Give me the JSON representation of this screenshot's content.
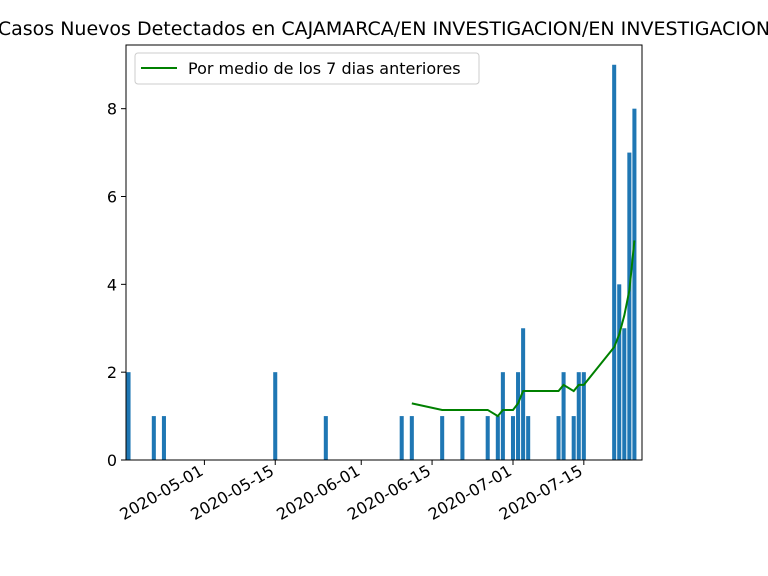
{
  "chart_data": {
    "type": "bar",
    "title": "Casos Nuevos Detectados en CAJAMARCA/EN INVESTIGACION/EN INVESTIGACION",
    "xlabel": "",
    "ylabel": "",
    "x_range": [
      "2020-04-16",
      "2020-07-26"
    ],
    "ylim": [
      0,
      9.45
    ],
    "grid": false,
    "legend_placement": "upper-left",
    "x_tick_labels": [
      "2020-05-01",
      "2020-05-15",
      "2020-06-01",
      "2020-06-15",
      "2020-07-01",
      "2020-07-15"
    ],
    "y_tick_labels": [
      "0",
      "2",
      "4",
      "6",
      "8"
    ],
    "y_tick_values": [
      0,
      2,
      4,
      6,
      8
    ],
    "bar_color": "#1f77b4",
    "line_color": "#008000",
    "bars": [
      {
        "date": "2020-04-16",
        "value": 2
      },
      {
        "date": "2020-04-21",
        "value": 1
      },
      {
        "date": "2020-04-23",
        "value": 1
      },
      {
        "date": "2020-05-15",
        "value": 2
      },
      {
        "date": "2020-05-25",
        "value": 1
      },
      {
        "date": "2020-06-09",
        "value": 1
      },
      {
        "date": "2020-06-11",
        "value": 1
      },
      {
        "date": "2020-06-17",
        "value": 1
      },
      {
        "date": "2020-06-21",
        "value": 1
      },
      {
        "date": "2020-06-26",
        "value": 1
      },
      {
        "date": "2020-06-28",
        "value": 1
      },
      {
        "date": "2020-06-29",
        "value": 2
      },
      {
        "date": "2020-07-01",
        "value": 1
      },
      {
        "date": "2020-07-02",
        "value": 2
      },
      {
        "date": "2020-07-03",
        "value": 3
      },
      {
        "date": "2020-07-04",
        "value": 1
      },
      {
        "date": "2020-07-10",
        "value": 1
      },
      {
        "date": "2020-07-11",
        "value": 2
      },
      {
        "date": "2020-07-13",
        "value": 1
      },
      {
        "date": "2020-07-14",
        "value": 2
      },
      {
        "date": "2020-07-15",
        "value": 2
      },
      {
        "date": "2020-07-21",
        "value": 9
      },
      {
        "date": "2020-07-22",
        "value": 4
      },
      {
        "date": "2020-07-23",
        "value": 3
      },
      {
        "date": "2020-07-24",
        "value": 7
      },
      {
        "date": "2020-07-25",
        "value": 8
      }
    ],
    "series": [
      {
        "name": "Por medio de los 7 dias anteriores",
        "points": [
          {
            "date": "2020-06-11",
            "value": 1.29
          },
          {
            "date": "2020-06-17",
            "value": 1.14
          },
          {
            "date": "2020-06-26",
            "value": 1.14
          },
          {
            "date": "2020-06-28",
            "value": 1.0
          },
          {
            "date": "2020-06-29",
            "value": 1.14
          },
          {
            "date": "2020-07-01",
            "value": 1.14
          },
          {
            "date": "2020-07-02",
            "value": 1.29
          },
          {
            "date": "2020-07-03",
            "value": 1.57
          },
          {
            "date": "2020-07-04",
            "value": 1.57
          },
          {
            "date": "2020-07-10",
            "value": 1.57
          },
          {
            "date": "2020-07-11",
            "value": 1.71
          },
          {
            "date": "2020-07-13",
            "value": 1.57
          },
          {
            "date": "2020-07-14",
            "value": 1.71
          },
          {
            "date": "2020-07-15",
            "value": 1.71
          },
          {
            "date": "2020-07-21",
            "value": 2.57
          },
          {
            "date": "2020-07-22",
            "value": 2.86
          },
          {
            "date": "2020-07-23",
            "value": 3.29
          },
          {
            "date": "2020-07-24",
            "value": 3.86
          },
          {
            "date": "2020-07-25",
            "value": 5.0
          }
        ]
      }
    ]
  }
}
